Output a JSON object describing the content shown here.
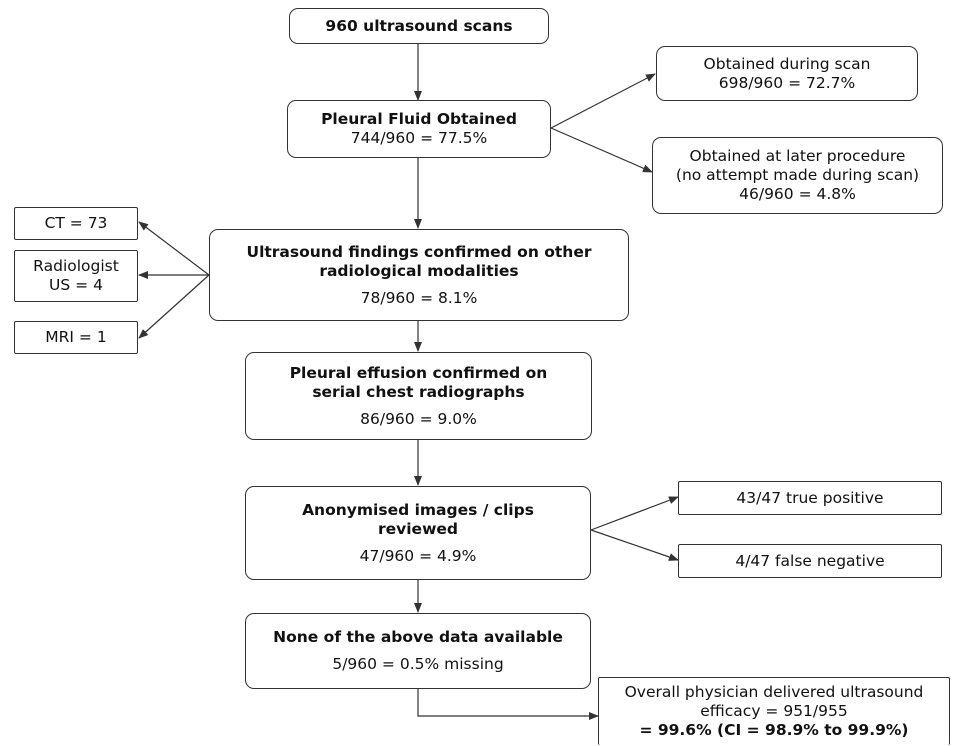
{
  "colors": {
    "line": "#333333",
    "border": "#333333",
    "text": "#111111",
    "background": "#ffffff"
  },
  "nodes": {
    "scans": {
      "title": "960 ultrasound scans"
    },
    "pleural_fluid": {
      "title": "Pleural Fluid Obtained",
      "value": "744/960 = 77.5%"
    },
    "obtained_during": {
      "line1": "Obtained during scan",
      "line2": "698/960 = 72.7%"
    },
    "obtained_later": {
      "line1": "Obtained at later procedure",
      "line2": "(no attempt made during scan)",
      "line3": "46/960 = 4.8%"
    },
    "ultrasound_confirmed": {
      "title_line1": "Ultrasound findings confirmed on other",
      "title_line2": "radiological modalities",
      "value": "78/960 = 8.1%"
    },
    "ct": {
      "label": "CT = 73"
    },
    "radiologist": {
      "line1": "Radiologist",
      "line2": "US = 4"
    },
    "mri": {
      "label": "MRI = 1"
    },
    "pleural_effusion": {
      "title_line1": "Pleural effusion confirmed on",
      "title_line2": "serial chest radiographs",
      "value": "86/960 = 9.0%"
    },
    "anonymised": {
      "title_line1": "Anonymised images / clips",
      "title_line2": "reviewed",
      "value": "47/960 = 4.9%"
    },
    "true_positive": {
      "label": "43/47 true positive"
    },
    "false_negative": {
      "label": "4/47 false negative"
    },
    "none_available": {
      "title": "None of the above data available",
      "value": "5/960 = 0.5% missing"
    },
    "overall": {
      "line1": "Overall physician delivered ultrasound",
      "line2": "efficacy = 951/955",
      "line3": "= 99.6% (CI = 98.9% to 99.9%)"
    }
  }
}
